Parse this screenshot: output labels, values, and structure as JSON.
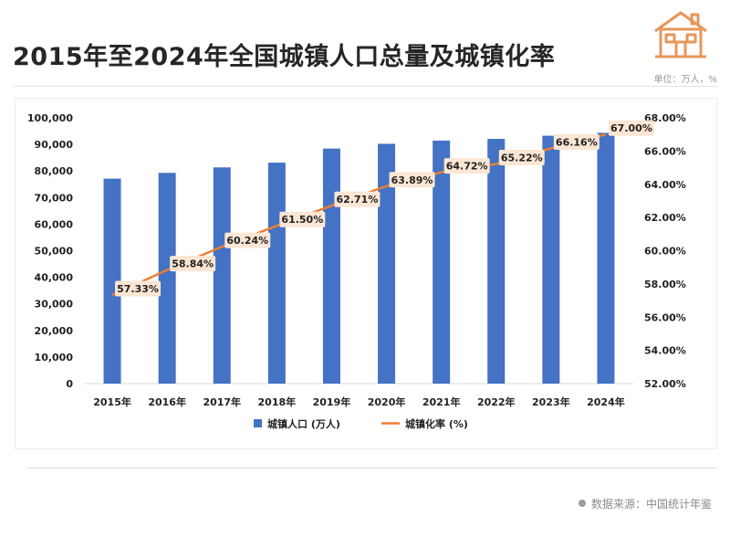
{
  "title": "2015年至2024年全国城镇人口总量及城镇化率",
  "unit_note": "单位：万人，%",
  "source": "数据来源：中国统计年鉴",
  "logo": {
    "icon": "house-icon",
    "color": "#e8965a"
  },
  "colors": {
    "bar": "#4472c4",
    "line": "#ed7d31",
    "label_bg": "#fbe6d4"
  },
  "chart_data": {
    "type": "bar+line",
    "categories": [
      "2015年",
      "2016年",
      "2017年",
      "2018年",
      "2019年",
      "2020年",
      "2021年",
      "2022年",
      "2023年",
      "2024年"
    ],
    "series": [
      {
        "name": "城镇人口 (万人)",
        "type": "bar",
        "axis": "left",
        "values": [
          77116,
          79298,
          81347,
          83137,
          88426,
          90220,
          91425,
          92071,
          93267,
          94350
        ]
      },
      {
        "name": "城镇化率 (%)",
        "type": "line",
        "axis": "right",
        "values": [
          57.33,
          58.84,
          60.24,
          61.5,
          62.71,
          63.89,
          64.72,
          65.22,
          66.16,
          67.0
        ],
        "labels": [
          "57.33%",
          "58.84%",
          "60.24%",
          "61.50%",
          "62.71%",
          "63.89%",
          "64.72%",
          "65.22%",
          "66.16%",
          "67.00%"
        ]
      }
    ],
    "y_left": {
      "min": 0,
      "max": 100000,
      "step": 10000,
      "ticks": [
        "0",
        "10,000",
        "20,000",
        "30,000",
        "40,000",
        "50,000",
        "60,000",
        "70,000",
        "80,000",
        "90,000",
        "100,000"
      ]
    },
    "y_right": {
      "min": 52,
      "max": 68,
      "step": 2,
      "ticks": [
        "52.00%",
        "54.00%",
        "56.00%",
        "58.00%",
        "60.00%",
        "62.00%",
        "64.00%",
        "66.00%",
        "68.00%"
      ]
    },
    "legend": "bottom",
    "grid": false
  }
}
